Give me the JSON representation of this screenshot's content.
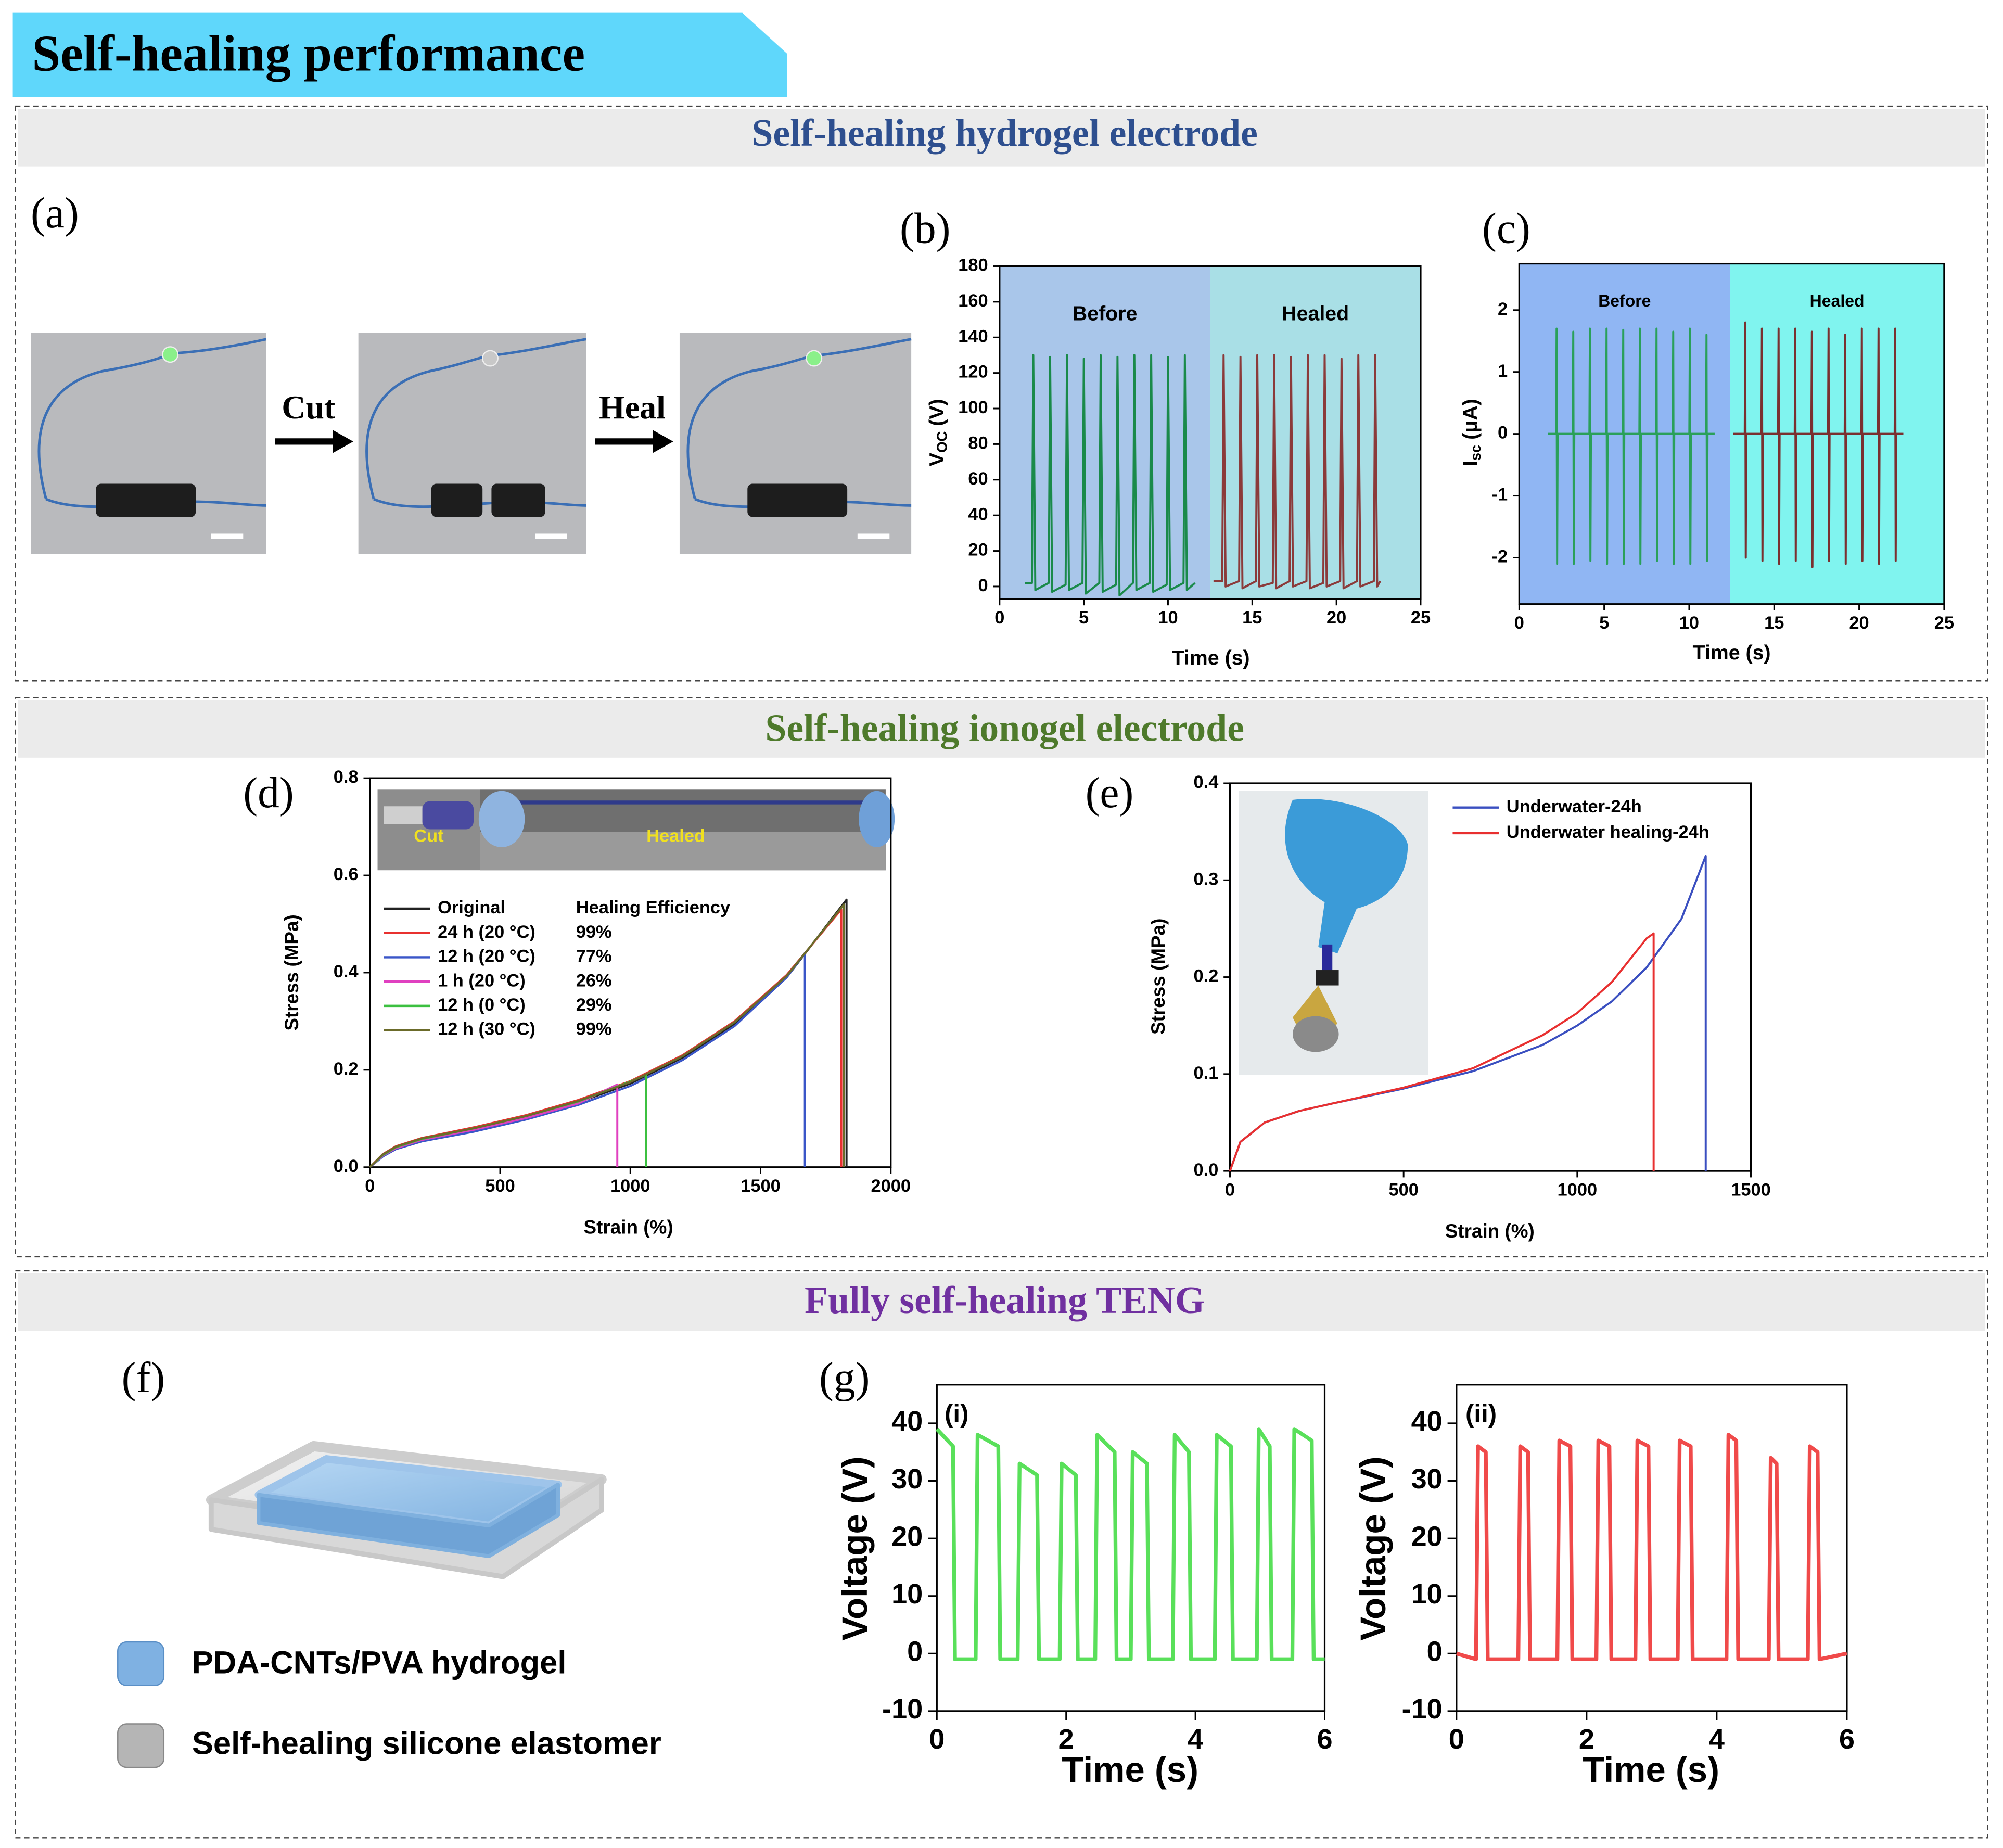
{
  "header": {
    "title": "Self-healing performance"
  },
  "sections": [
    {
      "title": "Self-healing hydrogel electrode"
    },
    {
      "title": "Self-healing ionogel electrode"
    },
    {
      "title": "Fully self-healing TENG"
    }
  ],
  "panel_labels": [
    "(a)",
    "(b)",
    "(c)",
    "(d)",
    "(e)",
    "(f)",
    "(g)"
  ],
  "panel_a": {
    "steps": [
      "Cut",
      "Heal"
    ]
  },
  "panel_f": {
    "legend": [
      "PDA-CNTs/PVA hydrogel",
      "Self-healing silicone elastomer"
    ]
  },
  "chart_data": [
    {
      "type": "line",
      "xlabel": "Time (s)",
      "ylabel": {
        "base": "V",
        "sub": "OC",
        "rest": "(V)"
      },
      "xlim": [
        0,
        25
      ],
      "xticks": [
        0,
        5,
        10,
        15,
        20,
        25
      ],
      "ylim": [
        -7,
        180
      ],
      "yticks": [
        0,
        20,
        40,
        60,
        80,
        100,
        120,
        140,
        160,
        180
      ],
      "regions": [
        {
          "label": "Before",
          "x0": 0,
          "x1": 12.5,
          "color": "#a9c6ea"
        },
        {
          "label": "Healed",
          "x0": 12.5,
          "x1": 25,
          "color": "#a9dfe6"
        }
      ],
      "series": [
        {
          "color": "#1a8a4a",
          "x": [
            1.5,
            1.92,
            2,
            2.12,
            2.92,
            3,
            3.12,
            3.92,
            4,
            4.12,
            4.92,
            5,
            5.12,
            5.92,
            6,
            6.12,
            6.92,
            7,
            7.12,
            7.92,
            8,
            8.12,
            8.92,
            9,
            9.12,
            9.92,
            10,
            10.12,
            10.92,
            11,
            11.12,
            11.6
          ],
          "values": [
            2,
            2,
            130,
            -2,
            2,
            129,
            -3,
            1,
            130,
            -2,
            2,
            128,
            -4,
            2,
            130,
            -3,
            1,
            129,
            -5,
            2,
            130,
            -2,
            2,
            130,
            -3,
            1,
            129,
            -2,
            2,
            130,
            -2,
            2
          ]
        },
        {
          "color": "#8b3a3a",
          "x": [
            12.7,
            13.22,
            13.3,
            13.42,
            14.22,
            14.3,
            14.42,
            15.22,
            15.3,
            15.42,
            16.22,
            16.3,
            16.42,
            17.22,
            17.3,
            17.42,
            18.22,
            18.3,
            18.42,
            19.22,
            19.3,
            19.42,
            20.22,
            20.3,
            20.42,
            21.22,
            21.3,
            21.42,
            22.22,
            22.3,
            22.42,
            22.6
          ],
          "values": [
            3,
            3,
            130,
            0,
            3,
            129,
            -1,
            3,
            130,
            0,
            2,
            130,
            -1,
            3,
            129,
            0,
            3,
            130,
            -1,
            2,
            130,
            0,
            3,
            128,
            -1,
            3,
            130,
            0,
            3,
            130,
            0,
            3
          ]
        }
      ]
    },
    {
      "type": "line",
      "xlabel": "Time (s)",
      "ylabel": {
        "base": "I",
        "sub": "sc",
        "rest": "(μA)"
      },
      "xlim": [
        0,
        25
      ],
      "xticks": [
        0,
        5,
        10,
        15,
        20,
        25
      ],
      "ylim": [
        -2.75,
        2.75
      ],
      "yticks": [
        -2,
        -1,
        0,
        1,
        2
      ],
      "regions": [
        {
          "label": "Before",
          "x0": 0,
          "x1": 12.4,
          "color": "#90b6f3"
        },
        {
          "label": "Healed",
          "x0": 12.4,
          "x1": 25,
          "color": "#80f4ef"
        }
      ],
      "series": [
        {
          "color": "#2aa05a",
          "x": [
            1.7,
            2.17,
            2.2,
            2.23,
            2.26,
            3.15,
            3.18,
            3.21,
            3.24,
            4.13,
            4.16,
            4.19,
            4.22,
            5.11,
            5.14,
            5.17,
            5.2,
            6.09,
            6.12,
            6.15,
            6.18,
            7.07,
            7.1,
            7.13,
            7.16,
            8.05,
            8.08,
            8.11,
            8.14,
            9.03,
            9.06,
            9.09,
            9.12,
            10.01,
            10.04,
            10.07,
            10.1,
            10.99,
            11.02,
            11.05,
            11.08,
            11.5
          ],
          "values": [
            0,
            0,
            1.7,
            -2.1,
            0,
            0,
            1.65,
            -2.1,
            0,
            0,
            1.7,
            -2.05,
            0,
            0,
            1.7,
            -2.1,
            0,
            0,
            1.68,
            -2.1,
            0,
            0,
            1.7,
            -2.1,
            0,
            0,
            1.7,
            -2.05,
            0,
            0,
            1.65,
            -2.1,
            0,
            0,
            1.7,
            -2.1,
            0,
            0,
            1.6,
            -2.05,
            0,
            0
          ]
        },
        {
          "color": "#7a3030",
          "x": [
            12.6,
            13.27,
            13.3,
            13.33,
            13.36,
            14.25,
            14.28,
            14.31,
            14.34,
            15.23,
            15.26,
            15.29,
            15.32,
            16.21,
            16.24,
            16.27,
            16.3,
            17.19,
            17.22,
            17.25,
            17.28,
            18.17,
            18.2,
            18.23,
            18.26,
            19.15,
            19.18,
            19.21,
            19.24,
            20.13,
            20.16,
            20.19,
            20.22,
            21.11,
            21.14,
            21.17,
            21.2,
            22.09,
            22.12,
            22.15,
            22.18,
            22.6
          ],
          "values": [
            0,
            0,
            1.8,
            -2.0,
            0,
            0,
            1.7,
            -2.05,
            0,
            0,
            1.7,
            -2.1,
            0,
            0,
            1.7,
            -2.05,
            0,
            0,
            1.65,
            -2.15,
            0,
            0,
            1.7,
            -2.05,
            0,
            0,
            1.6,
            -2.1,
            0,
            0,
            1.7,
            -2.05,
            0,
            0,
            1.7,
            -2.1,
            0,
            0,
            1.7,
            -2.05,
            0,
            0
          ]
        }
      ]
    },
    {
      "type": "line",
      "xlabel": "Strain (%)",
      "ylabel": "Stress (MPa)",
      "xlim": [
        0,
        2000
      ],
      "xticks": [
        0,
        500,
        1000,
        1500,
        2000
      ],
      "ylim": [
        0,
        0.8
      ],
      "yticks": [
        {
          "value": 0,
          "label": "0.0"
        },
        {
          "value": 0.2,
          "label": "0.2"
        },
        {
          "value": 0.4,
          "label": "0.4"
        },
        {
          "value": 0.6,
          "label": "0.6"
        },
        {
          "value": 0.8,
          "label": "0.8"
        }
      ],
      "inset_labels": [
        "Cut",
        "Healed"
      ],
      "legend_header": "Healing Efficiency",
      "series": [
        {
          "name": "Original",
          "color": "#222222",
          "x": [
            0,
            50,
            100,
            200,
            400,
            600,
            800,
            1000,
            1200,
            1400,
            1600,
            1830,
            1830
          ],
          "values": [
            0,
            0.025,
            0.04,
            0.057,
            0.078,
            0.103,
            0.133,
            0.172,
            0.225,
            0.295,
            0.39,
            0.55,
            0
          ]
        },
        {
          "name": "24 h (20 °C)",
          "efficiency": "99%",
          "color": "#e8312f",
          "x": [
            0,
            50,
            100,
            200,
            400,
            600,
            800,
            1000,
            1200,
            1400,
            1600,
            1810,
            1810
          ],
          "values": [
            0,
            0.027,
            0.043,
            0.06,
            0.082,
            0.107,
            0.138,
            0.177,
            0.23,
            0.3,
            0.395,
            0.53,
            0
          ]
        },
        {
          "name": "12 h (20 °C)",
          "efficiency": "77%",
          "color": "#3a56c8",
          "x": [
            0,
            50,
            100,
            200,
            400,
            600,
            800,
            1000,
            1200,
            1400,
            1600,
            1670,
            1670
          ],
          "values": [
            0,
            0.022,
            0.037,
            0.053,
            0.073,
            0.098,
            0.128,
            0.167,
            0.22,
            0.29,
            0.39,
            0.44,
            0
          ]
        },
        {
          "name": "1 h (20 °C)",
          "efficiency": "26%",
          "color": "#e040c0",
          "x": [
            0,
            50,
            100,
            200,
            400,
            600,
            800,
            950,
            950
          ],
          "values": [
            0,
            0.024,
            0.039,
            0.056,
            0.077,
            0.101,
            0.131,
            0.17,
            0
          ]
        },
        {
          "name": "12 h (0 °C)",
          "efficiency": "29%",
          "color": "#3cc040",
          "x": [
            0,
            50,
            100,
            200,
            400,
            600,
            800,
            1000,
            1060,
            1060
          ],
          "values": [
            0,
            0.025,
            0.041,
            0.058,
            0.08,
            0.105,
            0.135,
            0.176,
            0.19,
            0
          ]
        },
        {
          "name": "12 h (30 °C)",
          "efficiency": "99%",
          "color": "#6b6b2a",
          "x": [
            0,
            50,
            100,
            200,
            400,
            600,
            800,
            1000,
            1200,
            1400,
            1600,
            1820,
            1820
          ],
          "values": [
            0,
            0.026,
            0.042,
            0.059,
            0.08,
            0.105,
            0.136,
            0.175,
            0.228,
            0.298,
            0.393,
            0.54,
            0
          ]
        }
      ]
    },
    {
      "type": "line",
      "xlabel": "Strain (%)",
      "ylabel": "Stress (MPa)",
      "xlim": [
        0,
        1500
      ],
      "xticks": [
        0,
        500,
        1000,
        1500
      ],
      "ylim": [
        0,
        0.4
      ],
      "yticks": [
        {
          "value": 0,
          "label": "0.0"
        },
        {
          "value": 0.1,
          "label": "0.1"
        },
        {
          "value": 0.2,
          "label": "0.2"
        },
        {
          "value": 0.3,
          "label": "0.3"
        },
        {
          "value": 0.4,
          "label": "0.4"
        }
      ],
      "series": [
        {
          "name": "Underwater-24h",
          "color": "#3a4fc0",
          "x": [
            0,
            30,
            100,
            200,
            300,
            500,
            700,
            900,
            1000,
            1100,
            1200,
            1300,
            1370,
            1370
          ],
          "values": [
            0,
            0.03,
            0.05,
            0.062,
            0.07,
            0.085,
            0.103,
            0.13,
            0.15,
            0.175,
            0.21,
            0.26,
            0.325,
            0
          ]
        },
        {
          "name": "Underwater healing-24h",
          "color": "#e83030",
          "x": [
            0,
            30,
            100,
            200,
            300,
            500,
            700,
            900,
            1000,
            1100,
            1200,
            1220,
            1220
          ],
          "values": [
            0,
            0.03,
            0.05,
            0.062,
            0.07,
            0.086,
            0.106,
            0.14,
            0.163,
            0.195,
            0.24,
            0.245,
            0
          ]
        }
      ]
    },
    {
      "type": "line",
      "tag": "(i)",
      "xlabel": "Time (s)",
      "ylabel": "Voltage (V)",
      "xlim": [
        0,
        6
      ],
      "xticks": [
        0,
        2,
        4,
        6
      ],
      "ylim": [
        -10,
        46.7
      ],
      "yticks": [
        -10,
        0,
        10,
        20,
        30,
        40
      ],
      "series": [
        {
          "color": "#59e05a",
          "x": [
            0,
            0.25,
            0.28,
            0.6,
            0.63,
            0.95,
            0.98,
            1.25,
            1.28,
            1.55,
            1.58,
            1.9,
            1.93,
            2.15,
            2.18,
            2.45,
            2.48,
            2.75,
            2.78,
            3.0,
            3.03,
            3.25,
            3.28,
            3.65,
            3.68,
            3.9,
            3.93,
            4.3,
            4.33,
            4.55,
            4.58,
            4.95,
            4.98,
            5.15,
            5.18,
            5.5,
            5.53,
            5.8,
            5.83,
            6.0
          ],
          "values": [
            39,
            36,
            -1,
            -1,
            38,
            36,
            -1,
            -1,
            33,
            31,
            -1,
            -1,
            33,
            31,
            -1,
            -1,
            38,
            35,
            -1,
            -1,
            35,
            33,
            -1,
            -1,
            38,
            35,
            -1,
            -1,
            38,
            36,
            -1,
            -1,
            39,
            36,
            -1,
            -1,
            39,
            37,
            -1,
            -1
          ]
        }
      ]
    },
    {
      "type": "line",
      "tag": "(ii)",
      "xlabel": "Time (s)",
      "ylabel": "Voltage (V)",
      "xlim": [
        0,
        6
      ],
      "xticks": [
        0,
        2,
        4,
        6
      ],
      "ylim": [
        -10,
        46.7
      ],
      "yticks": [
        -10,
        0,
        10,
        20,
        30,
        40
      ],
      "series": [
        {
          "color": "#f04a4a",
          "x": [
            0,
            0.3,
            0.33,
            0.45,
            0.48,
            0.95,
            0.98,
            1.1,
            1.13,
            1.55,
            1.58,
            1.75,
            1.78,
            2.15,
            2.18,
            2.35,
            2.38,
            2.75,
            2.78,
            2.95,
            2.98,
            3.4,
            3.43,
            3.6,
            3.63,
            4.15,
            4.18,
            4.3,
            4.33,
            4.8,
            4.83,
            4.92,
            4.95,
            5.4,
            5.43,
            5.55,
            5.58,
            6.0
          ],
          "values": [
            0,
            -1,
            36,
            35,
            -1,
            -1,
            36,
            35,
            -1,
            -1,
            37,
            36,
            -1,
            -1,
            37,
            36,
            -1,
            -1,
            37,
            36,
            -1,
            -1,
            37,
            36,
            -1,
            -1,
            38,
            37,
            -1,
            -1,
            34,
            33,
            -1,
            -1,
            36,
            35,
            -1,
            0
          ]
        }
      ]
    }
  ]
}
